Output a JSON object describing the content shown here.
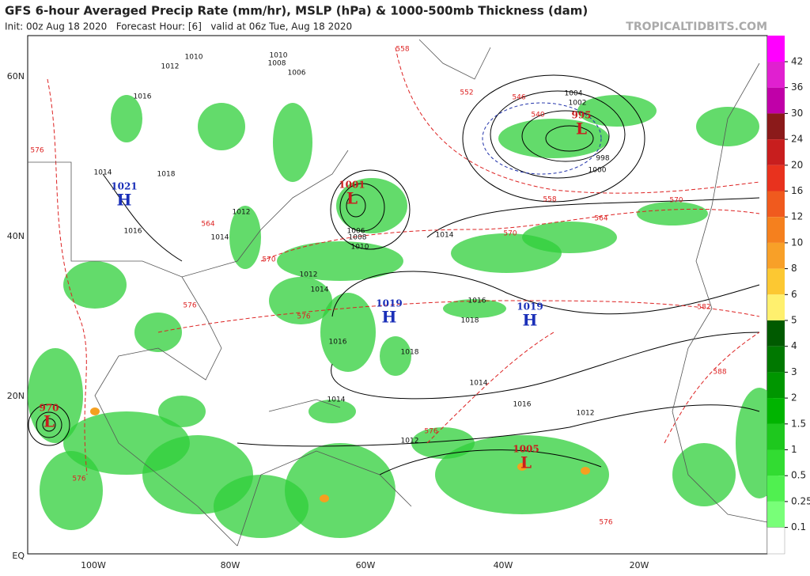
{
  "header": {
    "title": "GFS 6-hour Averaged Precip Rate (mm/hr), MSLP (hPa) & 1000-500mb Thickness (dam)",
    "subtitle": "Init: 00z Aug 18 2020   Forecast Hour: [6]   valid at 06z Tue, Aug 18 2020",
    "site": "TROPICALTIDBITS.COM"
  },
  "map": {
    "lat_labels": [
      "60N",
      "40N",
      "20N",
      "EQ"
    ],
    "lon_labels": [
      "100W",
      "80W",
      "60W",
      "40W",
      "20W"
    ],
    "centers": [
      {
        "letter": "H",
        "pressure": 1021
      },
      {
        "letter": "H",
        "pressure": 1019
      },
      {
        "letter": "H",
        "pressure": 1019
      },
      {
        "letter": "L",
        "pressure": 1001
      },
      {
        "letter": "L",
        "pressure": 995
      },
      {
        "letter": "L",
        "pressure": 970
      },
      {
        "letter": "L",
        "pressure": 1005
      }
    ],
    "isobar_labels": [
      1010,
      1012,
      1016,
      1014,
      1018,
      1016,
      1014,
      1012,
      1010,
      1008,
      1006,
      1004,
      1002,
      1000,
      998,
      1014,
      1016,
      1018,
      1016,
      1014,
      1012,
      1010,
      1008,
      1006,
      1012,
      1014,
      1016,
      1018,
      1014,
      1012
    ],
    "thickness_labels": [
      558,
      576,
      570,
      564,
      570,
      552,
      546,
      540,
      558,
      564,
      570,
      576,
      576,
      582,
      588,
      576,
      576,
      576
    ]
  },
  "colorbar": {
    "levels": [
      42,
      36,
      30,
      24,
      20,
      16,
      12,
      10,
      8,
      6,
      5,
      4,
      3,
      2,
      1.5,
      1,
      0.5,
      0.25,
      0.1
    ],
    "colors": [
      "#ff00ff",
      "#e020d0",
      "#c000a8",
      "#8b1a1a",
      "#c81e1e",
      "#e8321e",
      "#f05a1e",
      "#f5801e",
      "#f8a028",
      "#fcc832",
      "#fff06e",
      "#005a00",
      "#007800",
      "#009600",
      "#00b400",
      "#1ec81e",
      "#32dc32",
      "#50f050",
      "#78ff78"
    ]
  }
}
